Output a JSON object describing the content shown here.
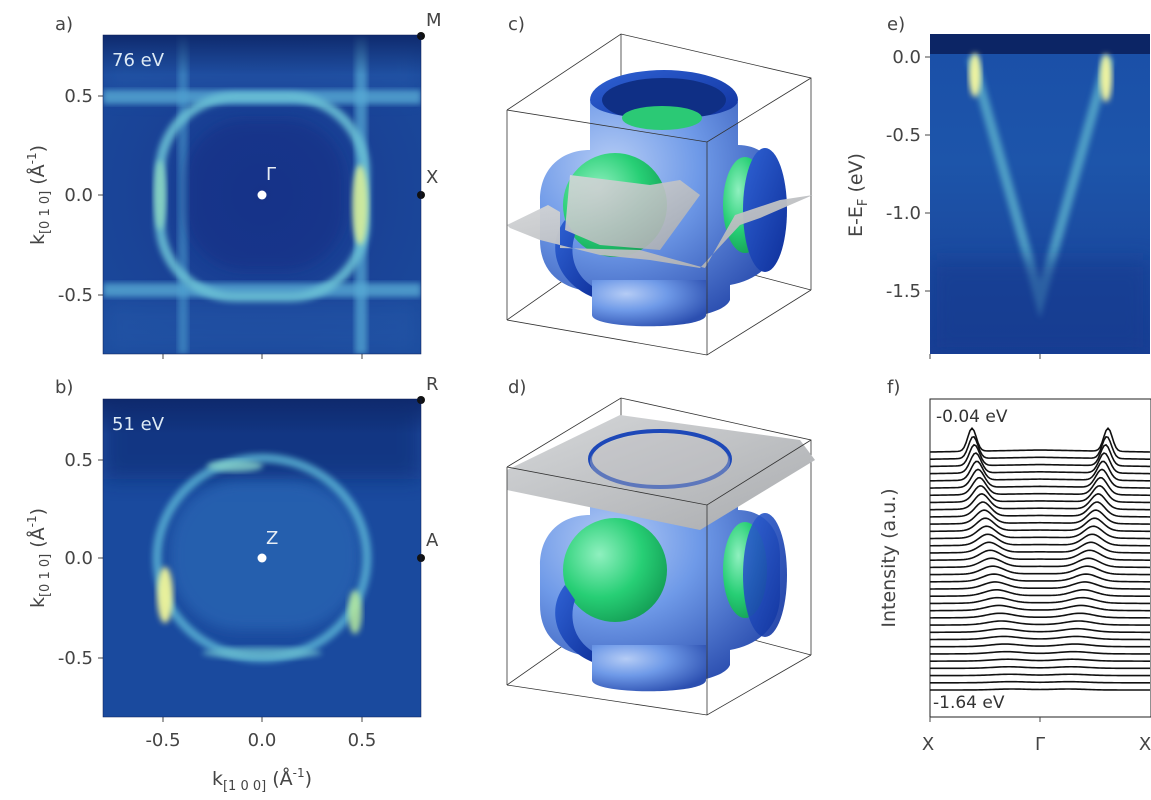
{
  "panels": {
    "a": {
      "label": "a)",
      "energy": "76 eV",
      "center_point": "Γ",
      "edge_point": "X",
      "corner_point": "M",
      "y_ticks": [
        "0.5",
        "0.0",
        "-0.5"
      ],
      "y_label": "k",
      "y_label_sub": "[0 1 0]",
      "y_label_unit": " (Å",
      "y_label_sup": "-1",
      "y_label_close": ")"
    },
    "b": {
      "label": "b)",
      "energy": "51 eV",
      "center_point": "Z",
      "edge_point": "A",
      "corner_point": "R",
      "y_ticks": [
        "0.5",
        "0.0",
        "-0.5"
      ],
      "x_ticks": [
        "-0.5",
        "0.0",
        "0.5"
      ],
      "y_label": "k",
      "y_label_sub": "[0 1 0]",
      "y_label_unit": " (Å",
      "y_label_sup": "-1",
      "y_label_close": ")",
      "x_label": "k",
      "x_label_sub": "[1 0 0]",
      "x_label_unit": " (Å",
      "x_label_sup": "-1",
      "x_label_close": ")"
    },
    "c": {
      "label": "c)"
    },
    "d": {
      "label": "d)"
    },
    "e": {
      "label": "e)",
      "y_ticks": [
        "0.0",
        "-0.5",
        "-1.0",
        "-1.5"
      ],
      "y_label": "E-E",
      "y_label_sub": "F",
      "y_label_unit": " (eV)"
    },
    "f": {
      "label": "f)",
      "top_curve": "-0.04 eV",
      "bottom_curve": "-1.64 eV",
      "y_label": "Intensity (a.u.)",
      "x_ticks": [
        "X",
        "Γ",
        "X"
      ],
      "curve_count": 34
    }
  },
  "colors": {
    "map_dark": "#0e2a74",
    "map_mid": "#2a6ab8",
    "map_bright": "#8fe0b0",
    "map_peak": "#f2f59a",
    "surface_blue": "#3f76d8",
    "sphere_green": "#2fd07a",
    "sheet_grey": "#c4c6c8"
  }
}
